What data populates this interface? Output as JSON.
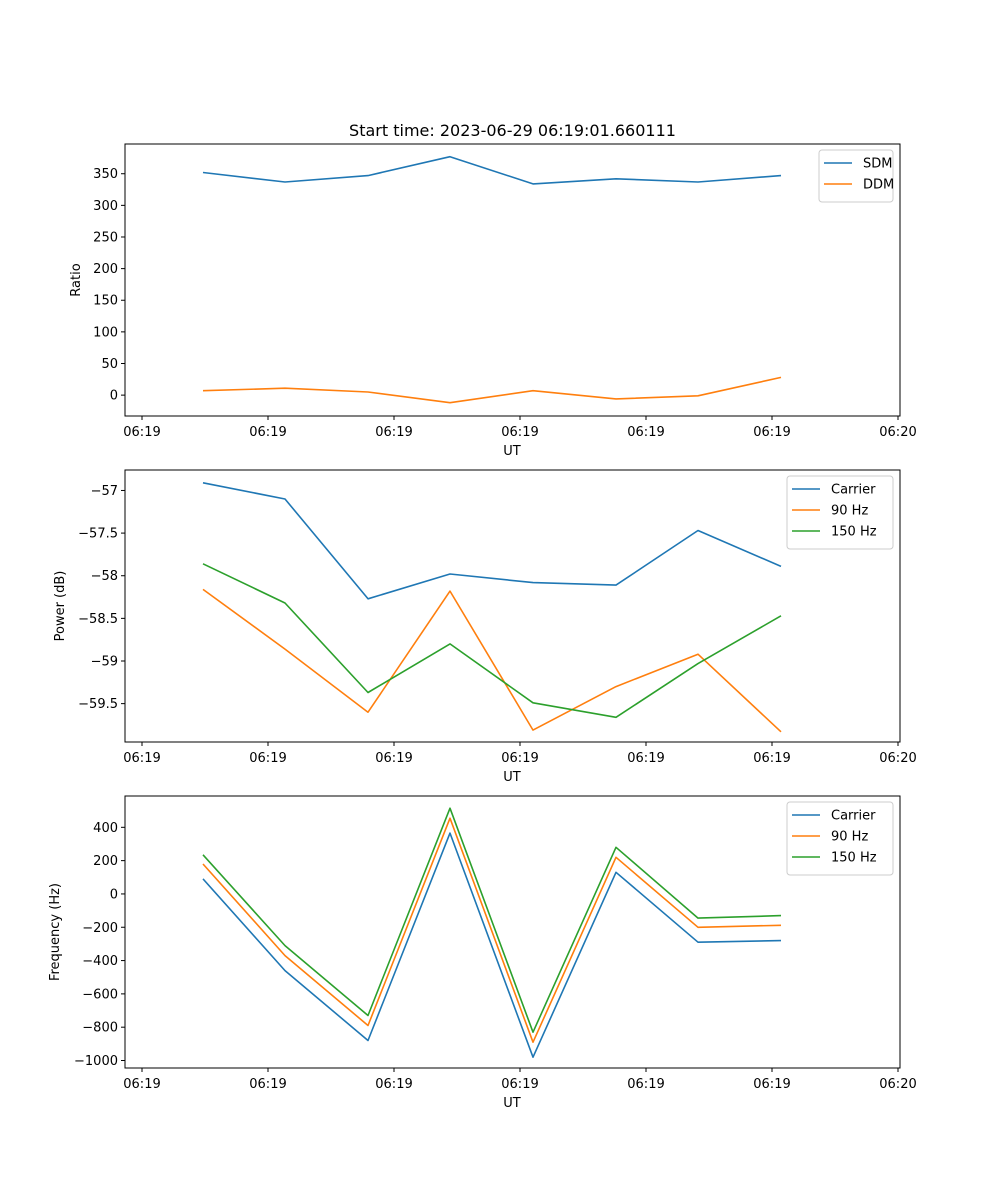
{
  "title": "Start time: 2023-06-29 06:19:01.660111",
  "colors": {
    "blue": "#1f77b4",
    "orange": "#ff7f0e",
    "green": "#2ca02c"
  },
  "chart_data": [
    {
      "type": "line",
      "title": "Start time: 2023-06-29 06:19:01.660111",
      "xlabel": "UT",
      "ylabel": "Ratio",
      "xticks": [
        "06:19",
        "06:19",
        "06:19",
        "06:19",
        "06:19",
        "06:19",
        "06:20"
      ],
      "yticks": [
        0,
        50,
        100,
        150,
        200,
        250,
        300,
        350
      ],
      "ylim": [
        -33,
        397
      ],
      "legend": "top-right",
      "series": [
        {
          "name": "SDM",
          "color": "#1f77b4",
          "values": [
            352,
            337,
            347,
            377,
            334,
            342,
            337,
            347
          ]
        },
        {
          "name": "DDM",
          "color": "#ff7f0e",
          "values": [
            7,
            11,
            5,
            -12,
            7,
            -6,
            -1,
            28
          ]
        }
      ]
    },
    {
      "type": "line",
      "xlabel": "UT",
      "ylabel": "Power (dB)",
      "xticks": [
        "06:19",
        "06:19",
        "06:19",
        "06:19",
        "06:19",
        "06:19",
        "06:20"
      ],
      "yticks": [
        -57.0,
        -57.5,
        -58.0,
        -58.5,
        -59.0,
        -59.5
      ],
      "ylim": [
        -59.95,
        -56.76
      ],
      "legend": "top-right",
      "series": [
        {
          "name": "Carrier",
          "color": "#1f77b4",
          "values": [
            -56.91,
            -57.1,
            -58.27,
            -57.98,
            -58.08,
            -58.11,
            -57.47,
            -57.89
          ]
        },
        {
          "name": "90 Hz",
          "color": "#ff7f0e",
          "values": [
            -58.16,
            -58.86,
            -59.6,
            -58.18,
            -59.81,
            -59.3,
            -58.92,
            -59.83
          ]
        },
        {
          "name": "150 Hz",
          "color": "#2ca02c",
          "values": [
            -57.86,
            -58.32,
            -59.37,
            -58.8,
            -59.49,
            -59.66,
            -59.03,
            -58.47
          ]
        }
      ]
    },
    {
      "type": "line",
      "xlabel": "UT",
      "ylabel": "Frequency (Hz)",
      "xticks": [
        "06:19",
        "06:19",
        "06:19",
        "06:19",
        "06:19",
        "06:19",
        "06:20"
      ],
      "yticks": [
        400,
        200,
        0,
        -200,
        -400,
        -600,
        -800,
        -1000
      ],
      "ylim": [
        -1045,
        588
      ],
      "legend": "top-right",
      "series": [
        {
          "name": "Carrier",
          "color": "#1f77b4",
          "values": [
            90,
            -460,
            -880,
            365,
            -980,
            130,
            -290,
            -280
          ]
        },
        {
          "name": "90 Hz",
          "color": "#ff7f0e",
          "values": [
            180,
            -370,
            -790,
            455,
            -890,
            220,
            -200,
            -188
          ]
        },
        {
          "name": "150 Hz",
          "color": "#2ca02c",
          "values": [
            235,
            -310,
            -730,
            515,
            -830,
            280,
            -145,
            -130
          ]
        }
      ]
    }
  ]
}
